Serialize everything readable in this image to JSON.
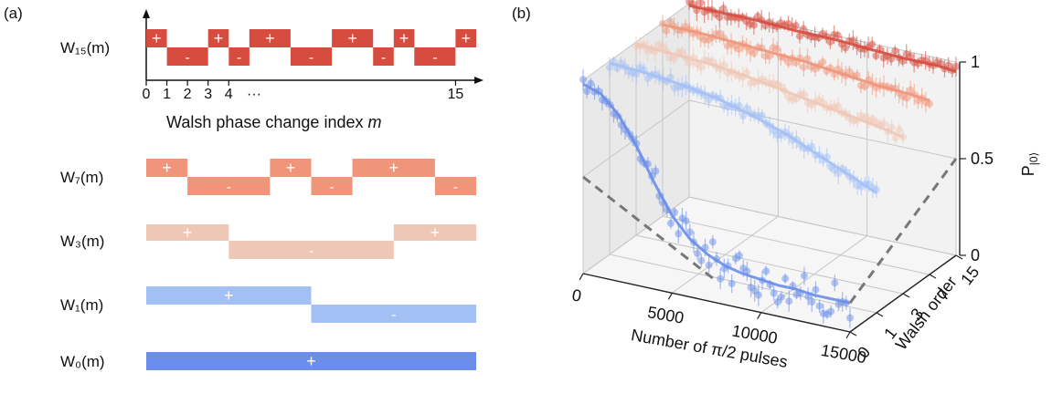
{
  "chart_data": [
    {
      "panel": "(a)",
      "type": "step",
      "xlabel_text": "Walsh phase change index ",
      "xlabel_var": "m",
      "x_ticks": [
        "0",
        "1",
        "2",
        "3",
        "4",
        "···",
        "15"
      ],
      "signs": {
        "plus": "+",
        "minus": "-"
      },
      "segments": 16,
      "series": [
        {
          "name": "W₁₅(m)",
          "color": "#d64d3f",
          "values": [
            1,
            -1,
            -1,
            1,
            -1,
            1,
            1,
            -1,
            -1,
            1,
            1,
            -1,
            1,
            -1,
            -1,
            1
          ]
        },
        {
          "name": "W₇(m)",
          "color": "#f0957a",
          "values": [
            1,
            1,
            -1,
            -1,
            -1,
            -1,
            1,
            1,
            -1,
            -1,
            1,
            1,
            1,
            1,
            -1,
            -1
          ]
        },
        {
          "name": "W₃(m)",
          "color": "#efc7b6",
          "values": [
            1,
            1,
            1,
            1,
            -1,
            -1,
            -1,
            -1,
            -1,
            -1,
            -1,
            -1,
            1,
            1,
            1,
            1
          ]
        },
        {
          "name": "W₁(m)",
          "color": "#a3c0f5",
          "values": [
            1,
            1,
            1,
            1,
            1,
            1,
            1,
            1,
            -1,
            -1,
            -1,
            -1,
            -1,
            -1,
            -1,
            -1
          ]
        },
        {
          "name": "W₀(m)",
          "color": "#6a8eea",
          "values": [
            1,
            1,
            1,
            1,
            1,
            1,
            1,
            1,
            1,
            1,
            1,
            1,
            1,
            1,
            1,
            1
          ]
        }
      ]
    },
    {
      "panel": "(b)",
      "type": "scatter3d",
      "xlabel": "Number of π/2 pulses",
      "ylabel": "Walsh order",
      "zlabel_main": "P",
      "zlabel_sub": "|0⟩",
      "x_ticks": [
        "0",
        "5000",
        "10000",
        "15000"
      ],
      "y_ticks": [
        "0",
        "1",
        "3",
        "7",
        "15"
      ],
      "z_ticks": [
        "0",
        "0.5",
        "1"
      ],
      "xlim": [
        0,
        15000
      ],
      "zlim": [
        0,
        1
      ],
      "grid": true,
      "reference_level": 0.5,
      "series": [
        {
          "name": "0",
          "color": "#6a8eea",
          "x": [
            0,
            1000,
            2000,
            3000,
            4000,
            5000,
            6000,
            7000,
            8000,
            9000,
            10000,
            11000,
            12000,
            13000,
            14000,
            15000
          ],
          "y": [
            0.98,
            0.95,
            0.86,
            0.72,
            0.55,
            0.4,
            0.3,
            0.24,
            0.2,
            0.18,
            0.17,
            0.16,
            0.16,
            0.15,
            0.15,
            0.15
          ]
        },
        {
          "name": "1",
          "color": "#a3c0f5",
          "x": [
            0,
            2000,
            4000,
            6000,
            8000,
            10000,
            12000,
            14000,
            15000
          ],
          "y": [
            0.99,
            0.98,
            0.96,
            0.93,
            0.88,
            0.82,
            0.74,
            0.66,
            0.62
          ]
        },
        {
          "name": "3",
          "color": "#efc7b6",
          "x": [
            0,
            2000,
            4000,
            6000,
            8000,
            10000,
            12000,
            14000,
            15000
          ],
          "y": [
            0.99,
            0.98,
            0.97,
            0.95,
            0.92,
            0.89,
            0.86,
            0.83,
            0.81
          ]
        },
        {
          "name": "7",
          "color": "#f0957a",
          "x": [
            0,
            2000,
            4000,
            6000,
            8000,
            10000,
            12000,
            14000,
            15000
          ],
          "y": [
            0.99,
            0.99,
            0.98,
            0.97,
            0.96,
            0.94,
            0.92,
            0.91,
            0.9
          ]
        },
        {
          "name": "15",
          "color": "#d64d3f",
          "x": [
            0,
            2000,
            4000,
            6000,
            8000,
            10000,
            12000,
            14000,
            15000
          ],
          "y": [
            0.99,
            0.99,
            0.99,
            0.98,
            0.98,
            0.97,
            0.96,
            0.96,
            0.95
          ]
        }
      ]
    }
  ]
}
